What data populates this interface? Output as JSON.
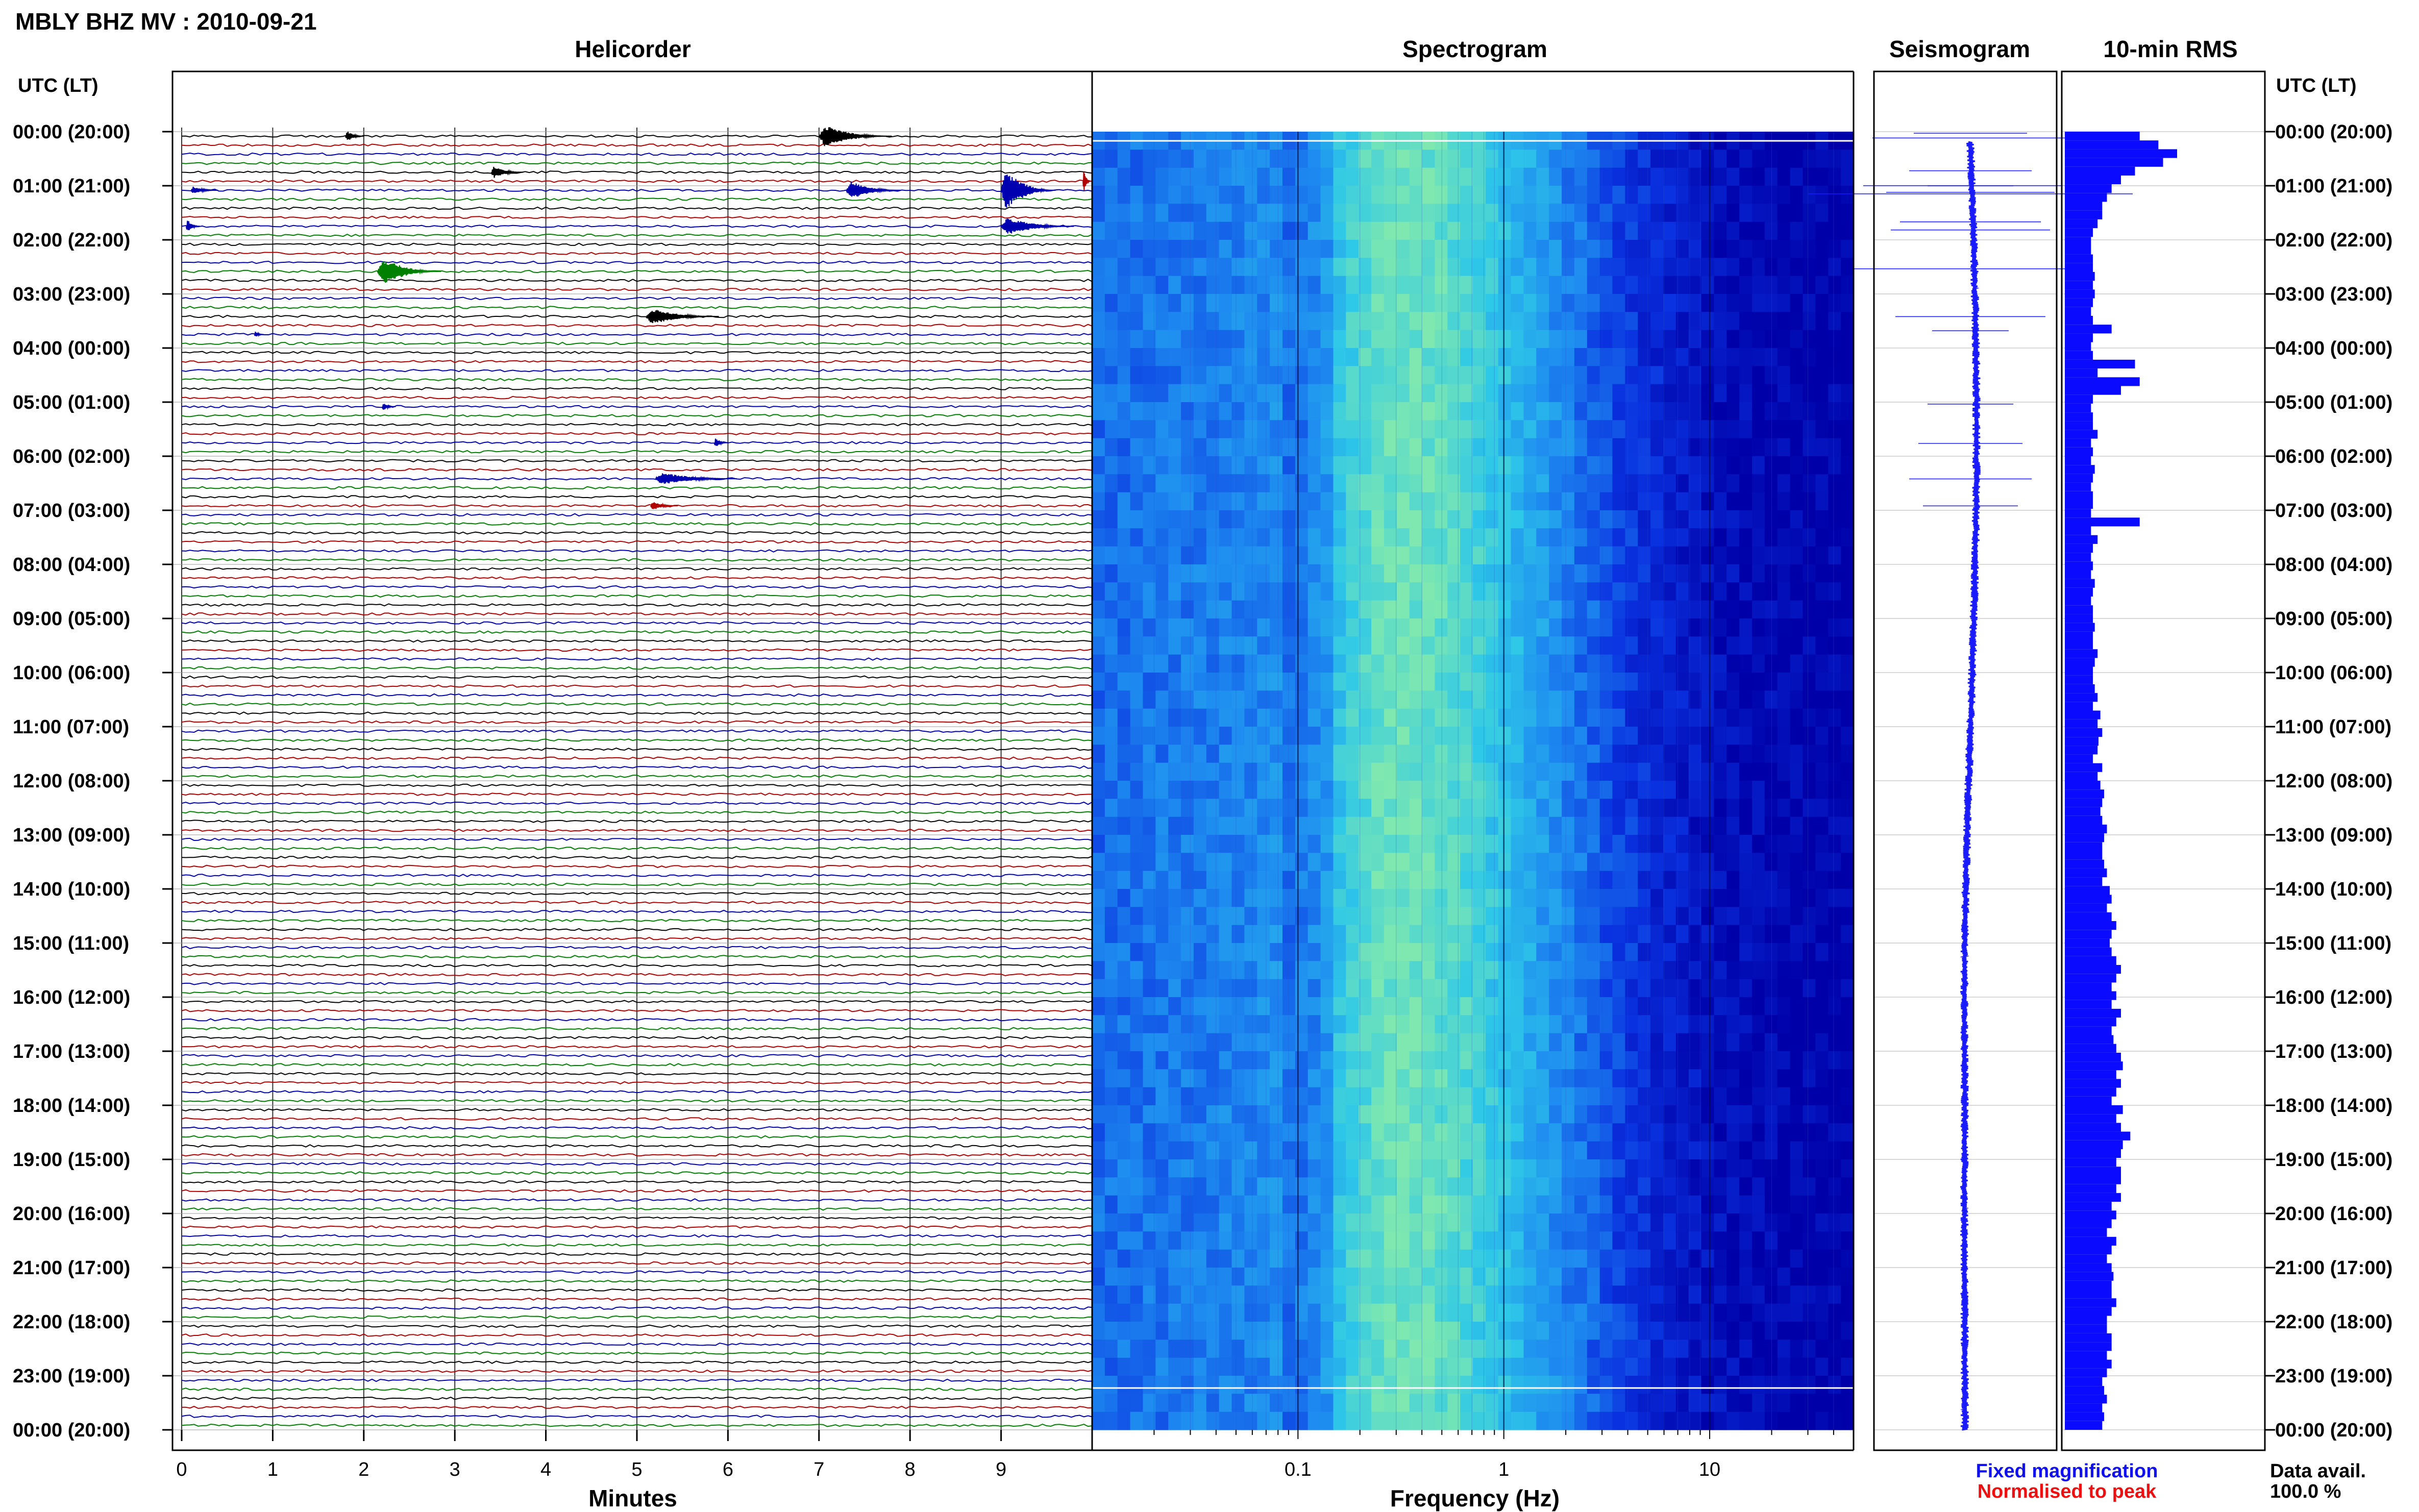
{
  "header": {
    "station_title": "MBLY BHZ MV : 2010-09-21"
  },
  "panels": {
    "helicorder_title": "Helicorder",
    "spectrogram_title": "Spectrogram",
    "seismogram_title": "Seismogram",
    "rms_title": "10-min RMS"
  },
  "axes": {
    "time_axis_label": "UTC (LT)",
    "minutes_label": "Minutes",
    "frequency_label": "Frequency (Hz)"
  },
  "legend": {
    "fixed": "Fixed magnification",
    "normalised": "Normalised to peak",
    "fixed_color": "#1010ee",
    "normalised_color": "#ee1010"
  },
  "data_avail": {
    "label": "Data avail.",
    "value": "100.0 %"
  },
  "colors": {
    "trace_cycle": [
      "#000000",
      "#b00000",
      "#0000b0",
      "#008000"
    ],
    "rms_bar": "#0a0aff",
    "seismogram": "#1a1aff"
  },
  "chart_data": [
    {
      "type": "line",
      "name": "helicorder",
      "title": "Helicorder",
      "xlabel": "Minutes",
      "x_ticks": [
        "0",
        "1",
        "2",
        "3",
        "4",
        "5",
        "6",
        "7",
        "8",
        "9"
      ],
      "xlim": [
        0,
        10
      ],
      "rows_per_hour": 6,
      "hours": 24,
      "y_tick_labels": [
        "00:00 (20:00)",
        "01:00 (21:00)",
        "02:00 (22:00)",
        "03:00 (23:00)",
        "04:00 (00:00)",
        "05:00 (01:00)",
        "06:00 (02:00)",
        "07:00 (03:00)",
        "08:00 (04:00)",
        "09:00 (05:00)",
        "10:00 (06:00)",
        "11:00 (07:00)",
        "12:00 (08:00)",
        "13:00 (09:00)",
        "14:00 (10:00)",
        "15:00 (11:00)",
        "16:00 (12:00)",
        "17:00 (13:00)",
        "18:00 (14:00)",
        "19:00 (15:00)",
        "20:00 (16:00)",
        "21:00 (17:00)",
        "22:00 (18:00)",
        "23:00 (19:00)",
        "00:00 (20:00)"
      ],
      "events": [
        {
          "row": 0,
          "minute": 7.0,
          "amp": 0.9,
          "dur": 0.8
        },
        {
          "row": 0,
          "minute": 1.8,
          "amp": 0.45,
          "dur": 0.2
        },
        {
          "row": 4,
          "minute": 3.4,
          "amp": 0.5,
          "dur": 0.35
        },
        {
          "row": 5,
          "minute": 9.9,
          "amp": 1.0,
          "dur": 0.15
        },
        {
          "row": 6,
          "minute": 0.1,
          "amp": 0.3,
          "dur": 0.3
        },
        {
          "row": 6,
          "minute": 7.3,
          "amp": 0.75,
          "dur": 0.6
        },
        {
          "row": 6,
          "minute": 9.0,
          "amp": 1.6,
          "dur": 0.6
        },
        {
          "row": 10,
          "minute": 0.05,
          "amp": 0.6,
          "dur": 0.15
        },
        {
          "row": 10,
          "minute": 9.0,
          "amp": 0.7,
          "dur": 0.8
        },
        {
          "row": 15,
          "minute": 2.15,
          "amp": 1.1,
          "dur": 0.7
        },
        {
          "row": 20,
          "minute": 5.1,
          "amp": 0.65,
          "dur": 0.8
        },
        {
          "row": 22,
          "minute": 0.8,
          "amp": 0.25,
          "dur": 0.1
        },
        {
          "row": 30,
          "minute": 2.2,
          "amp": 0.3,
          "dur": 0.15
        },
        {
          "row": 34,
          "minute": 5.85,
          "amp": 0.4,
          "dur": 0.15
        },
        {
          "row": 38,
          "minute": 5.2,
          "amp": 0.5,
          "dur": 0.9
        },
        {
          "row": 41,
          "minute": 5.15,
          "amp": 0.35,
          "dur": 0.3
        }
      ]
    },
    {
      "type": "heatmap",
      "name": "spectrogram",
      "title": "Spectrogram",
      "xlabel": "Frequency (Hz)",
      "x_scale": "log",
      "xlim": [
        0.01,
        50
      ],
      "x_ticks": [
        "0.1",
        "1",
        "10"
      ],
      "y_tick_labels": [
        "00:00 (20:00)",
        "01:00 (21:00)",
        "02:00 (22:00)",
        "03:00 (23:00)",
        "04:00 (00:00)",
        "05:00 (01:00)",
        "06:00 (02:00)",
        "07:00 (03:00)",
        "08:00 (04:00)",
        "09:00 (05:00)",
        "10:00 (06:00)",
        "11:00 (07:00)",
        "12:00 (08:00)",
        "13:00 (09:00)",
        "14:00 (10:00)",
        "15:00 (11:00)",
        "16:00 (12:00)",
        "17:00 (13:00)",
        "18:00 (14:00)",
        "19:00 (15:00)",
        "20:00 (16:00)",
        "21:00 (17:00)",
        "22:00 (18:00)",
        "23:00 (19:00)",
        "00:00 (20:00)"
      ],
      "colormap": [
        "#0000a8",
        "#0a32e0",
        "#1e8cf0",
        "#2ec8e8",
        "#7ee8b0"
      ],
      "peak_frequency_hz": 0.3
    },
    {
      "type": "line",
      "name": "seismogram",
      "title": "Seismogram"
    },
    {
      "type": "bar",
      "name": "rms",
      "title": "10-min RMS",
      "orientation": "horizontal",
      "bar_minutes": 10,
      "values": [
        0.8,
        1.0,
        1.2,
        1.05,
        0.75,
        0.6,
        0.5,
        0.45,
        0.4,
        0.4,
        0.35,
        0.3,
        0.28,
        0.28,
        0.3,
        0.3,
        0.32,
        0.3,
        0.32,
        0.3,
        0.28,
        0.3,
        0.5,
        0.3,
        0.28,
        0.3,
        0.75,
        0.35,
        0.8,
        0.6,
        0.3,
        0.28,
        0.3,
        0.3,
        0.35,
        0.28,
        0.3,
        0.28,
        0.32,
        0.3,
        0.28,
        0.3,
        0.3,
        0.28,
        0.8,
        0.28,
        0.35,
        0.3,
        0.28,
        0.3,
        0.28,
        0.32,
        0.3,
        0.28,
        0.3,
        0.3,
        0.32,
        0.3,
        0.3,
        0.35,
        0.32,
        0.3,
        0.3,
        0.32,
        0.35,
        0.3,
        0.38,
        0.35,
        0.4,
        0.36,
        0.35,
        0.3,
        0.4,
        0.35,
        0.38,
        0.42,
        0.4,
        0.38,
        0.4,
        0.45,
        0.42,
        0.4,
        0.4,
        0.42,
        0.45,
        0.4,
        0.48,
        0.5,
        0.45,
        0.5,
        0.55,
        0.5,
        0.48,
        0.5,
        0.55,
        0.6,
        0.55,
        0.5,
        0.55,
        0.5,
        0.6,
        0.55,
        0.5,
        0.52,
        0.55,
        0.6,
        0.62,
        0.55,
        0.6,
        0.55,
        0.5,
        0.62,
        0.55,
        0.6,
        0.7,
        0.62,
        0.6,
        0.55,
        0.6,
        0.6,
        0.55,
        0.6,
        0.5,
        0.55,
        0.5,
        0.45,
        0.55,
        0.5,
        0.45,
        0.5,
        0.52,
        0.5,
        0.5,
        0.55,
        0.5,
        0.45,
        0.45,
        0.5,
        0.5,
        0.45,
        0.5,
        0.45,
        0.4,
        0.42,
        0.45,
        0.4,
        0.42,
        0.4
      ]
    }
  ]
}
